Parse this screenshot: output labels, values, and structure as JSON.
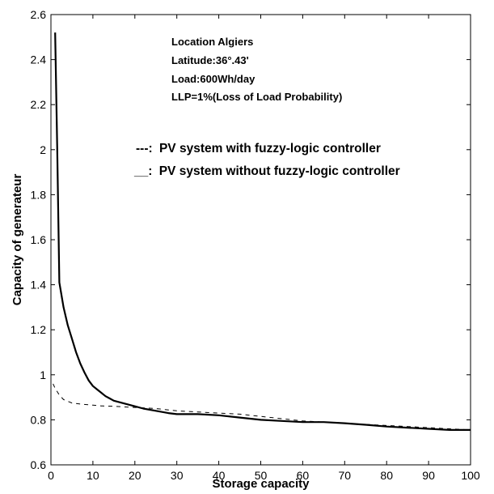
{
  "chart_data": {
    "type": "line",
    "title": "",
    "xlabel": "Storage capacity",
    "ylabel": "Capacity of generateur",
    "xlim": [
      0,
      100
    ],
    "ylim": [
      0.6,
      2.6
    ],
    "xticks": [
      0,
      10,
      20,
      30,
      40,
      50,
      60,
      70,
      80,
      90,
      100
    ],
    "xtick_labels": [
      "0",
      "10",
      "20",
      "30",
      "40",
      "50",
      "60",
      "70",
      "80",
      "90",
      "100"
    ],
    "yticks": [
      0.6,
      0.8,
      1,
      1.2,
      1.4,
      1.6,
      1.8,
      2,
      2.2,
      2.4,
      2.6
    ],
    "ytick_labels": [
      "0.6",
      "0.8",
      "1",
      "1.2",
      "1.4",
      "1.6",
      "1.8",
      "2",
      "2.2",
      "2.4",
      "2.6"
    ],
    "grid": false,
    "annotations": [
      "Location Algiers",
      "Latitude:36°.43'",
      "Load:600Wh/day",
      "LLP=1%(Loss of Load Probability)"
    ],
    "legend": {
      "placement": "upper-right-inside",
      "entries": [
        {
          "marker": "---:",
          "label": "PV system with fuzzy-logic controller"
        },
        {
          "marker": "__:",
          "label": "PV system without fuzzy-logic controller"
        }
      ]
    },
    "series": [
      {
        "style": "dashed",
        "color": "#000000",
        "x": [
          0.5,
          1,
          2,
          3,
          5,
          7,
          10,
          12,
          15,
          18,
          20,
          25,
          30,
          35,
          40,
          45,
          50,
          55,
          60,
          65,
          70,
          75,
          80,
          85,
          90,
          95,
          100
        ],
        "y": [
          0.96,
          0.94,
          0.91,
          0.89,
          0.875,
          0.87,
          0.865,
          0.862,
          0.86,
          0.857,
          0.855,
          0.85,
          0.84,
          0.835,
          0.83,
          0.825,
          0.815,
          0.805,
          0.795,
          0.79,
          0.785,
          0.78,
          0.775,
          0.77,
          0.765,
          0.76,
          0.755
        ]
      },
      {
        "style": "solid",
        "color": "#000000",
        "x": [
          1,
          1.5,
          2,
          3,
          4,
          5,
          6,
          7,
          8,
          9,
          10,
          11,
          12,
          13,
          14,
          15,
          17,
          20,
          22,
          25,
          28,
          30,
          35,
          40,
          45,
          50,
          55,
          60,
          65,
          70,
          75,
          80,
          85,
          90,
          95,
          100
        ],
        "y": [
          2.52,
          2.0,
          1.41,
          1.3,
          1.22,
          1.16,
          1.1,
          1.05,
          1.01,
          0.975,
          0.95,
          0.935,
          0.92,
          0.905,
          0.895,
          0.885,
          0.875,
          0.86,
          0.85,
          0.84,
          0.83,
          0.825,
          0.825,
          0.82,
          0.81,
          0.8,
          0.795,
          0.79,
          0.79,
          0.785,
          0.778,
          0.77,
          0.765,
          0.76,
          0.755,
          0.755
        ]
      }
    ]
  }
}
